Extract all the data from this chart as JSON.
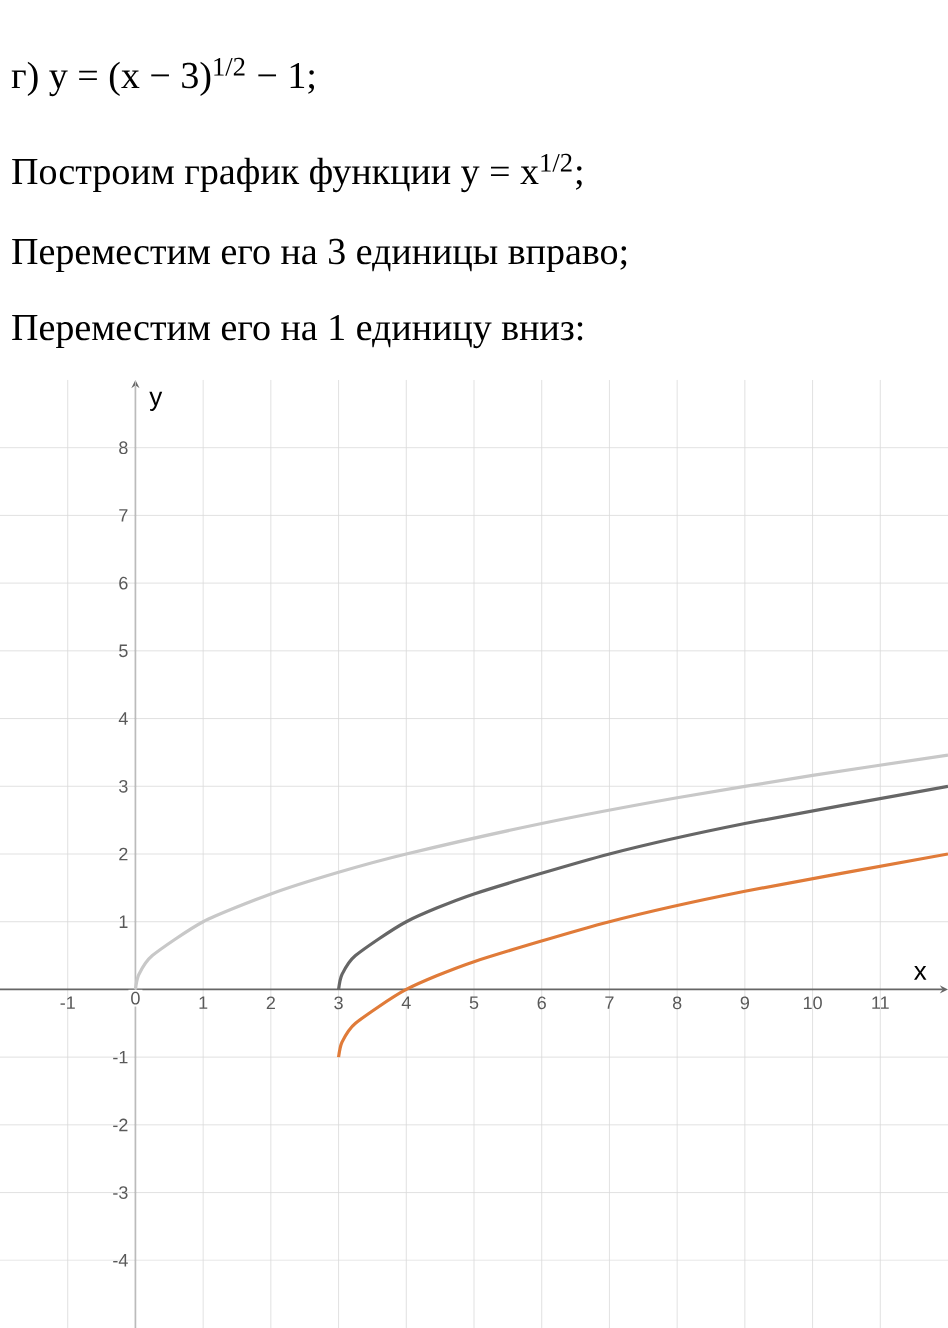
{
  "chart_data": {
    "type": "line",
    "title": "г) y = (x − 3)$^{1/2}$ − 1;",
    "subtitle": "Построим график функции y = x$^{1/2}$;",
    "annotations": [
      "Переместим его на 3 единицы вправо;",
      "Переместим его на 1 единицу вниз:"
    ],
    "xlabel": "x",
    "ylabel": "y",
    "xlim": [
      -2,
      12
    ],
    "ylim": [
      -5,
      9
    ],
    "xticks": [
      -1,
      0,
      1,
      2,
      3,
      4,
      5,
      6,
      7,
      8,
      9,
      10,
      11
    ],
    "yticks": [
      -4,
      -3,
      -2,
      -1,
      1,
      2,
      3,
      4,
      5,
      6,
      7,
      8
    ],
    "grid": true,
    "series": [
      {
        "color": "#c8c8c8",
        "x": [
          0,
          0.05,
          0.25,
          1,
          2,
          3,
          4,
          6,
          8,
          10,
          12
        ],
        "values": [
          0,
          0.22,
          0.5,
          1,
          1.41,
          1.73,
          2,
          2.45,
          2.83,
          3.16,
          3.46
        ]
      },
      {
        "color": "#666666",
        "x": [
          3,
          3.05,
          3.25,
          4,
          5,
          7,
          9,
          12
        ],
        "values": [
          0,
          0.22,
          0.5,
          1,
          1.41,
          2,
          2.45,
          3
        ]
      },
      {
        "color": "#e07b39",
        "x": [
          3,
          3.05,
          3.25,
          4,
          5,
          7,
          9,
          12
        ],
        "values": [
          -1,
          -0.78,
          -0.5,
          0,
          0.41,
          1,
          1.45,
          2
        ]
      }
    ]
  }
}
